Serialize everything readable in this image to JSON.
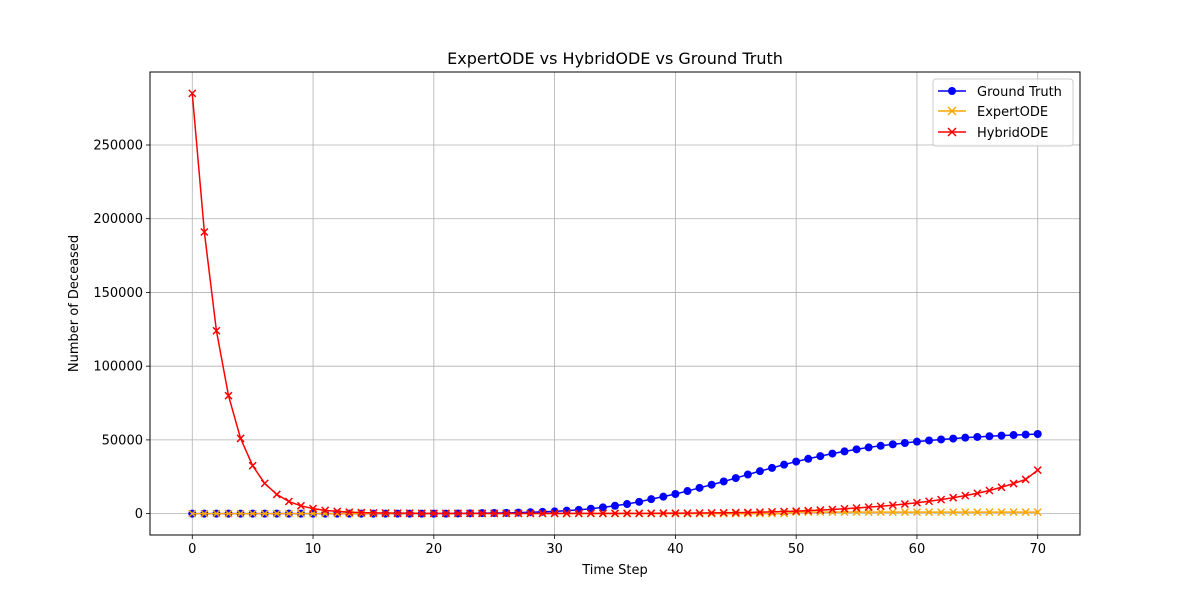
{
  "chart_data": {
    "type": "line",
    "title": "ExpertODE vs HybridODE vs Ground Truth",
    "xlabel": "Time Step",
    "ylabel": "Number of Deceased",
    "xlim": [
      -3.5,
      73.5
    ],
    "ylim": [
      -14500,
      299500
    ],
    "xticks": [
      0,
      10,
      20,
      30,
      40,
      50,
      60,
      70
    ],
    "xtick_labels": [
      "0",
      "10",
      "20",
      "30",
      "40",
      "50",
      "60",
      "70"
    ],
    "yticks": [
      0,
      50000,
      100000,
      150000,
      200000,
      250000
    ],
    "ytick_labels": [
      "0",
      "50000",
      "100000",
      "150000",
      "200000",
      "250000"
    ],
    "grid": true,
    "legend_position": "top-right",
    "x": [
      0,
      1,
      2,
      3,
      4,
      5,
      6,
      7,
      8,
      9,
      10,
      11,
      12,
      13,
      14,
      15,
      16,
      17,
      18,
      19,
      20,
      21,
      22,
      23,
      24,
      25,
      26,
      27,
      28,
      29,
      30,
      31,
      32,
      33,
      34,
      35,
      36,
      37,
      38,
      39,
      40,
      41,
      42,
      43,
      44,
      45,
      46,
      47,
      48,
      49,
      50,
      51,
      52,
      53,
      54,
      55,
      56,
      57,
      58,
      59,
      60,
      61,
      62,
      63,
      64,
      65,
      66,
      67,
      68,
      69,
      70
    ],
    "series": [
      {
        "name": "Ground Truth",
        "color": "#0000ff",
        "marker": "circle",
        "values": [
          0,
          0,
          0,
          0,
          0,
          0,
          0,
          0,
          0,
          0,
          0,
          0,
          0,
          0,
          0,
          0,
          0,
          0,
          0,
          0,
          0,
          0,
          100,
          200,
          300,
          400,
          500,
          700,
          900,
          1200,
          1500,
          2000,
          2500,
          3300,
          4200,
          5300,
          6500,
          8000,
          9800,
          11500,
          13300,
          15300,
          17500,
          19600,
          21800,
          24100,
          26500,
          28800,
          31000,
          33200,
          35300,
          37200,
          39000,
          40700,
          42200,
          43600,
          44900,
          46000,
          47000,
          47900,
          48800,
          49600,
          50300,
          50900,
          51500,
          52000,
          52500,
          52900,
          53300,
          53600,
          54000
        ]
      },
      {
        "name": "ExpertODE",
        "color": "#ffa500",
        "marker": "x",
        "values": [
          0,
          0,
          0,
          0,
          0,
          0,
          0,
          0,
          0,
          0,
          0,
          0,
          0,
          0,
          0,
          0,
          0,
          0,
          0,
          0,
          0,
          0,
          0,
          0,
          0,
          0,
          0,
          0,
          0,
          0,
          0,
          0,
          0,
          0,
          0,
          0,
          0,
          0,
          0,
          0,
          0,
          0,
          0,
          0,
          0,
          0,
          0,
          0,
          0,
          0,
          1000,
          1000,
          1000,
          1000,
          1000,
          1000,
          1000,
          1000,
          1000,
          1000,
          1000,
          1000,
          1000,
          1000,
          1000,
          1000,
          1000,
          1000,
          1000,
          1000,
          1000
        ]
      },
      {
        "name": "HybridODE",
        "color": "#ff0000",
        "marker": "x",
        "values": [
          285000,
          191000,
          124000,
          80000,
          51000,
          32500,
          20500,
          13000,
          8200,
          5300,
          3400,
          2200,
          1500,
          1000,
          700,
          500,
          400,
          300,
          300,
          200,
          200,
          200,
          200,
          200,
          200,
          200,
          200,
          200,
          200,
          200,
          200,
          200,
          200,
          200,
          200,
          200,
          200,
          200,
          200,
          300,
          300,
          300,
          400,
          500,
          600,
          700,
          800,
          1000,
          1200,
          1400,
          1700,
          2000,
          2400,
          2800,
          3300,
          3800,
          4400,
          5000,
          5700,
          6500,
          7400,
          8400,
          9500,
          10800,
          12200,
          13800,
          15700,
          17900,
          20400,
          23200,
          29500
        ]
      }
    ]
  }
}
